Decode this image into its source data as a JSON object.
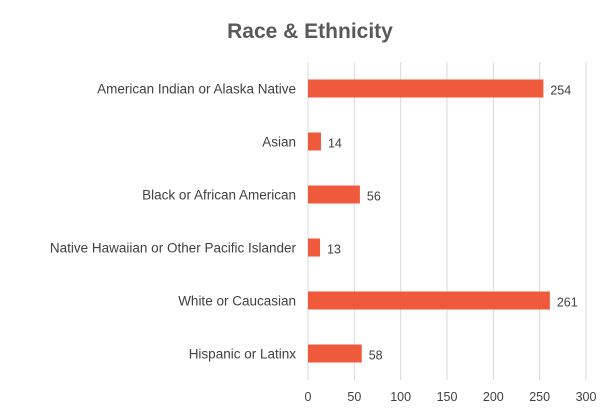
{
  "chart_data": {
    "type": "bar",
    "orientation": "horizontal",
    "title": "Race & Ethnicity",
    "xlabel": "",
    "ylabel": "",
    "categories": [
      "American Indian or Alaska Native",
      "Asian",
      "Black or African American",
      "Native Hawaiian or Other Pacific Islander",
      "White or Caucasian",
      "Hispanic or Latinx"
    ],
    "values": [
      254,
      14,
      56,
      13,
      261,
      58
    ],
    "xlim": [
      0,
      300
    ],
    "xticks": [
      0,
      50,
      100,
      150,
      200,
      250,
      300
    ],
    "grid": "vertical",
    "legend": "none",
    "colors": {
      "bar": "#f05a3c",
      "grid": "#d9d9d9",
      "text": "#404040",
      "title": "#595959"
    }
  }
}
